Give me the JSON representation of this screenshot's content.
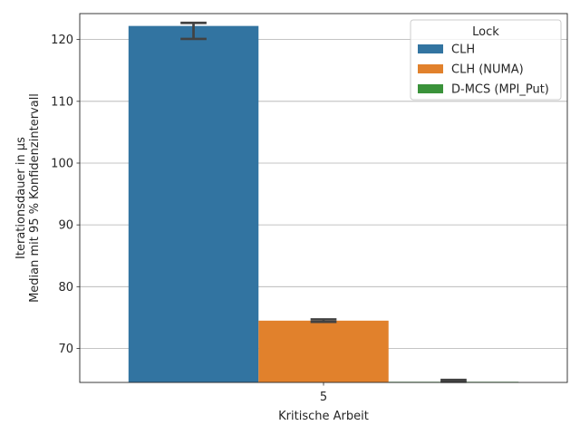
{
  "chart_data": {
    "type": "bar",
    "xlabel": "Kritische Arbeit",
    "ylabel_lines": [
      "Iterationsdauer in µs",
      "Median mit 95 % Konfidenzintervall"
    ],
    "categories": [
      "5"
    ],
    "ylim": [
      64.5,
      124.2
    ],
    "yticks": [
      70,
      80,
      90,
      100,
      110,
      120
    ],
    "grid": "y",
    "legend": {
      "title": "Lock",
      "placement": "top-right"
    },
    "series": [
      {
        "name": "CLH",
        "color": "#3274a1",
        "values": [
          122.2
        ],
        "ci": [
          [
            120.1,
            122.7
          ]
        ]
      },
      {
        "name": "CLH (NUMA)",
        "color": "#e1812c",
        "values": [
          74.5
        ],
        "ci": [
          [
            74.3,
            74.7
          ]
        ]
      },
      {
        "name": "D-MCS (MPI_Put)",
        "color": "#3a923a",
        "values": [
          64.6
        ],
        "ci": [
          [
            64.6,
            64.9
          ]
        ]
      }
    ]
  }
}
